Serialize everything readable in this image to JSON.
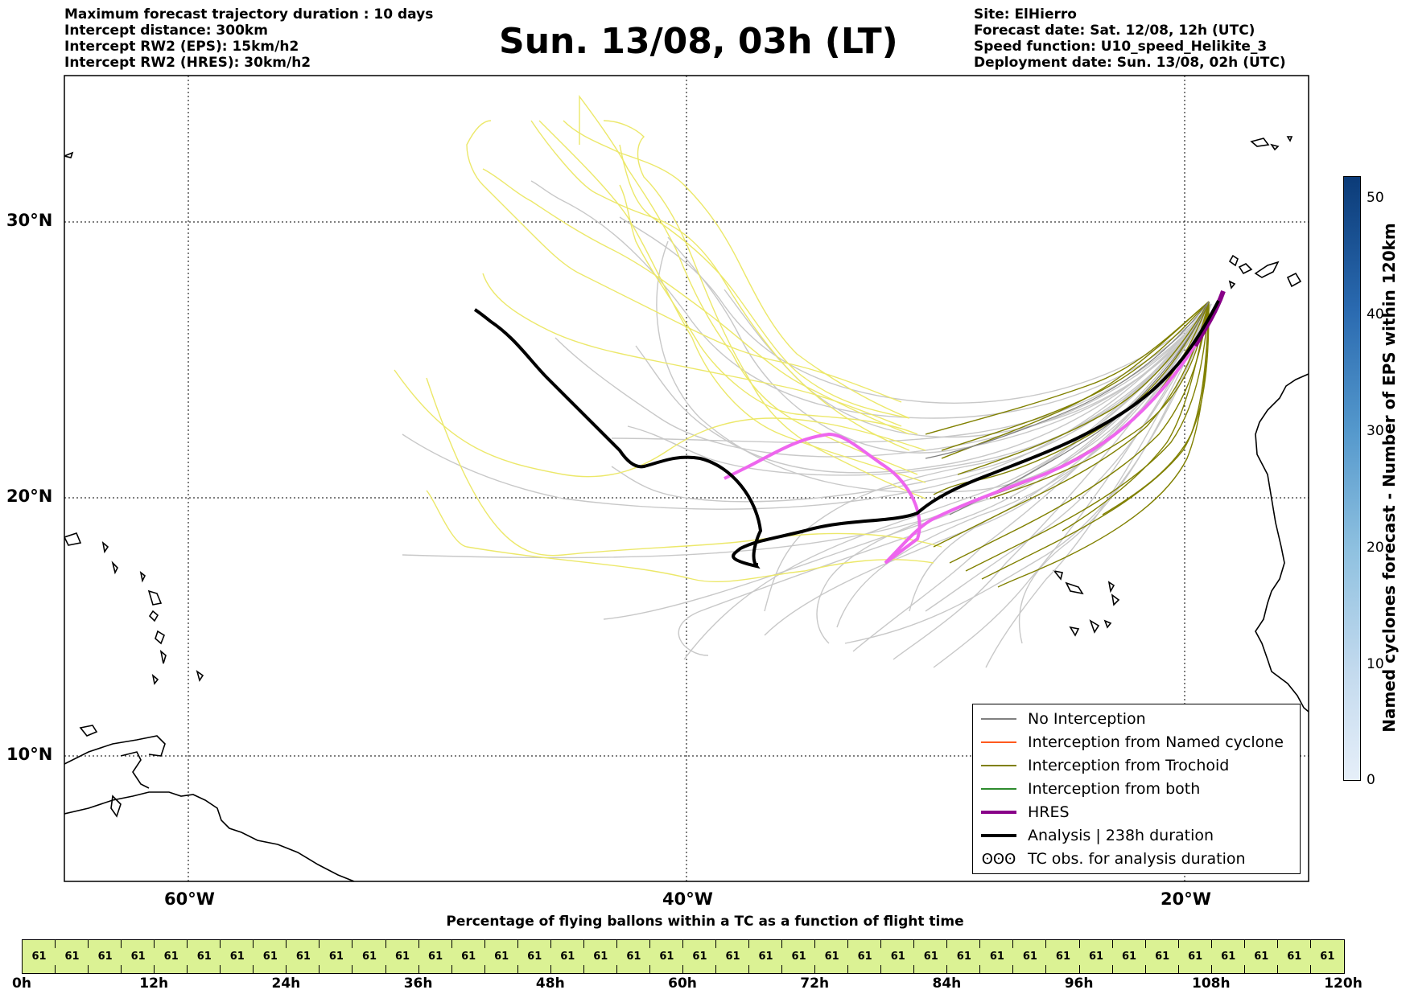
{
  "header_left": [
    "Maximum forecast trajectory duration : 10 days",
    "Intercept distance: 300km",
    "Intercept RW2 (EPS):  15km/h2",
    "Intercept RW2 (HRES): 30km/h2"
  ],
  "title": "Sun. 13/08, 03h (LT)",
  "header_right": [
    "Site: ElHierro",
    "Forecast date: Sat. 12/08, 12h (UTC)",
    "Speed function: U10_speed_Helikite_3",
    "Deployment date: Sun. 13/08, 02h (UTC)"
  ],
  "map": {
    "lat_labels": [
      "30°N",
      "20°N",
      "10°N"
    ],
    "lon_labels": [
      "60°W",
      "40°W",
      "20°W"
    ],
    "colors": {
      "eps_no_interception": "#c8c8c8",
      "eps_yellow": "#ece86a",
      "trochoid": "#808000",
      "hres": "#ee66ee",
      "hres_legend": "#880088",
      "analysis": "#000000"
    }
  },
  "legend": [
    {
      "label": "No Interception",
      "color": "#808080",
      "style": "thin"
    },
    {
      "label": "Interception from Named cyclone",
      "color": "#ff5a1e",
      "style": "thin"
    },
    {
      "label": "Interception from Trochoid",
      "color": "#808000",
      "style": "thin"
    },
    {
      "label": "Interception from both",
      "color": "#2e8b2e",
      "style": "thin"
    },
    {
      "label": "HRES",
      "color": "#880088",
      "style": "thick"
    },
    {
      "label": "Analysis | 238h duration",
      "color": "#000000",
      "style": "thick"
    },
    {
      "label": "TC obs. for analysis duration",
      "glyph": "ʘʘʘ",
      "style": "glyph"
    }
  ],
  "colorbar": {
    "label": "Named cyclones forecast - Number of EPS within 120km",
    "ticks": [
      "50",
      "40",
      "30",
      "20",
      "10",
      "0"
    ]
  },
  "percent_bar": {
    "title": "Percentage of flying ballons within a TC as a function of flight time",
    "values": [
      "61",
      "61",
      "61",
      "61",
      "61",
      "61",
      "61",
      "61",
      "61",
      "61",
      "61",
      "61",
      "61",
      "61",
      "61",
      "61",
      "61",
      "61",
      "61",
      "61",
      "61",
      "61",
      "61",
      "61",
      "61",
      "61",
      "61",
      "61",
      "61",
      "61",
      "61",
      "61",
      "61",
      "61",
      "61",
      "61",
      "61",
      "61",
      "61",
      "61"
    ],
    "time_ticks": [
      "0h",
      "12h",
      "24h",
      "36h",
      "48h",
      "60h",
      "72h",
      "84h",
      "96h",
      "108h",
      "120h"
    ]
  }
}
